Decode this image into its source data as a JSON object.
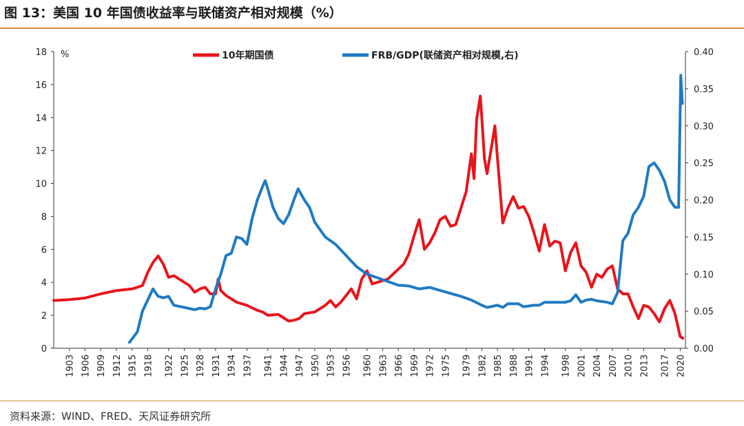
{
  "header": {
    "title": "图 13：美国 10 年国债收益率与联储资产相对规模（%）"
  },
  "footer": {
    "source": "资料来源：WIND、FRED、天风证券研究所"
  },
  "colors": {
    "yield": "#e8141b",
    "frb": "#1f7ac4",
    "rule": "#d98a3a",
    "axis": "#333333"
  },
  "chart_data": {
    "type": "line",
    "title": "",
    "left_axis_unit": "%",
    "ylim_left": [
      0,
      18
    ],
    "yticks_left": [
      0,
      2,
      4,
      6,
      8,
      10,
      12,
      14,
      16,
      18
    ],
    "ylim_right": [
      0,
      0.4
    ],
    "yticks_right": [
      "0.00",
      "0.05",
      "0.10",
      "0.15",
      "0.20",
      "0.25",
      "0.30",
      "0.35",
      "0.40"
    ],
    "xlim": [
      1900,
      2021
    ],
    "xticks": [
      1903,
      1906,
      1909,
      1912,
      1915,
      1918,
      1922,
      1925,
      1928,
      1931,
      1934,
      1937,
      1941,
      1944,
      1947,
      1950,
      1953,
      1956,
      1960,
      1963,
      1966,
      1969,
      1972,
      1975,
      1979,
      1982,
      1985,
      1988,
      1991,
      1994,
      1998,
      2001,
      2004,
      2007,
      2010,
      2013,
      2017,
      2020
    ],
    "legend_position": "top",
    "series": [
      {
        "name": "10年期国债",
        "axis": "left",
        "points": [
          [
            1900,
            2.9
          ],
          [
            1903,
            2.95
          ],
          [
            1906,
            3.05
          ],
          [
            1909,
            3.3
          ],
          [
            1912,
            3.5
          ],
          [
            1915,
            3.6
          ],
          [
            1917,
            3.8
          ],
          [
            1918,
            4.6
          ],
          [
            1919,
            5.2
          ],
          [
            1920,
            5.6
          ],
          [
            1921,
            5.1
          ],
          [
            1922,
            4.3
          ],
          [
            1923,
            4.4
          ],
          [
            1925,
            4.0
          ],
          [
            1926,
            3.8
          ],
          [
            1927,
            3.4
          ],
          [
            1928,
            3.6
          ],
          [
            1929,
            3.7
          ],
          [
            1930,
            3.3
          ],
          [
            1931,
            3.3
          ],
          [
            1931.5,
            4.2
          ],
          [
            1932,
            3.5
          ],
          [
            1933,
            3.2
          ],
          [
            1935,
            2.8
          ],
          [
            1937,
            2.6
          ],
          [
            1939,
            2.3
          ],
          [
            1940,
            2.2
          ],
          [
            1941,
            2.0
          ],
          [
            1943,
            2.05
          ],
          [
            1945,
            1.65
          ],
          [
            1946,
            1.7
          ],
          [
            1947,
            1.8
          ],
          [
            1948,
            2.1
          ],
          [
            1950,
            2.2
          ],
          [
            1952,
            2.6
          ],
          [
            1953,
            2.9
          ],
          [
            1954,
            2.5
          ],
          [
            1955,
            2.8
          ],
          [
            1957,
            3.6
          ],
          [
            1958,
            3.0
          ],
          [
            1959,
            4.2
          ],
          [
            1960,
            4.7
          ],
          [
            1961,
            3.9
          ],
          [
            1962,
            4.0
          ],
          [
            1964,
            4.2
          ],
          [
            1966,
            4.8
          ],
          [
            1967,
            5.1
          ],
          [
            1968,
            5.7
          ],
          [
            1969,
            6.8
          ],
          [
            1970,
            7.8
          ],
          [
            1971,
            6.0
          ],
          [
            1972,
            6.4
          ],
          [
            1973,
            7.0
          ],
          [
            1974,
            7.8
          ],
          [
            1975,
            8.0
          ],
          [
            1976,
            7.4
          ],
          [
            1977,
            7.5
          ],
          [
            1978,
            8.5
          ],
          [
            1979,
            9.5
          ],
          [
            1980,
            11.8
          ],
          [
            1980.5,
            10.3
          ],
          [
            1981,
            13.9
          ],
          [
            1981.7,
            15.3
          ],
          [
            1982,
            14.0
          ],
          [
            1982.5,
            11.5
          ],
          [
            1983,
            10.6
          ],
          [
            1984,
            12.5
          ],
          [
            1984.5,
            13.5
          ],
          [
            1985,
            11.5
          ],
          [
            1986,
            7.6
          ],
          [
            1987,
            8.5
          ],
          [
            1988,
            9.2
          ],
          [
            1989,
            8.5
          ],
          [
            1990,
            8.6
          ],
          [
            1991,
            8.0
          ],
          [
            1992,
            7.0
          ],
          [
            1993,
            5.9
          ],
          [
            1994,
            7.5
          ],
          [
            1995,
            6.2
          ],
          [
            1996,
            6.5
          ],
          [
            1997,
            6.4
          ],
          [
            1998,
            4.7
          ],
          [
            1999,
            5.8
          ],
          [
            2000,
            6.4
          ],
          [
            2001,
            5.0
          ],
          [
            2002,
            4.6
          ],
          [
            2003,
            3.7
          ],
          [
            2004,
            4.5
          ],
          [
            2005,
            4.3
          ],
          [
            2006,
            4.8
          ],
          [
            2007,
            5.0
          ],
          [
            2008,
            3.6
          ],
          [
            2009,
            3.3
          ],
          [
            2010,
            3.3
          ],
          [
            2011,
            2.5
          ],
          [
            2012,
            1.8
          ],
          [
            2013,
            2.6
          ],
          [
            2014,
            2.5
          ],
          [
            2015,
            2.1
          ],
          [
            2016,
            1.6
          ],
          [
            2017,
            2.4
          ],
          [
            2018,
            2.9
          ],
          [
            2019,
            2.1
          ],
          [
            2020,
            0.7
          ],
          [
            2020.5,
            0.6
          ]
        ]
      },
      {
        "name": "FRB/GDP(联储资产相对规模,右)",
        "axis": "right",
        "points": [
          [
            1914.5,
            0.008
          ],
          [
            1916,
            0.022
          ],
          [
            1917,
            0.05
          ],
          [
            1918,
            0.065
          ],
          [
            1919,
            0.08
          ],
          [
            1920,
            0.07
          ],
          [
            1921,
            0.068
          ],
          [
            1922,
            0.07
          ],
          [
            1923,
            0.058
          ],
          [
            1925,
            0.055
          ],
          [
            1927,
            0.052
          ],
          [
            1928,
            0.054
          ],
          [
            1929,
            0.053
          ],
          [
            1930,
            0.056
          ],
          [
            1931,
            0.08
          ],
          [
            1932,
            0.1
          ],
          [
            1933,
            0.125
          ],
          [
            1934,
            0.128
          ],
          [
            1935,
            0.15
          ],
          [
            1936,
            0.148
          ],
          [
            1937,
            0.14
          ],
          [
            1938,
            0.175
          ],
          [
            1939,
            0.2
          ],
          [
            1940,
            0.218
          ],
          [
            1940.5,
            0.226
          ],
          [
            1941,
            0.215
          ],
          [
            1942,
            0.19
          ],
          [
            1943,
            0.175
          ],
          [
            1944,
            0.168
          ],
          [
            1945,
            0.18
          ],
          [
            1946,
            0.2
          ],
          [
            1946.8,
            0.215
          ],
          [
            1948,
            0.2
          ],
          [
            1949,
            0.19
          ],
          [
            1950,
            0.17
          ],
          [
            1952,
            0.15
          ],
          [
            1954,
            0.14
          ],
          [
            1956,
            0.125
          ],
          [
            1958,
            0.11
          ],
          [
            1960,
            0.1
          ],
          [
            1962,
            0.095
          ],
          [
            1964,
            0.09
          ],
          [
            1966,
            0.085
          ],
          [
            1968,
            0.084
          ],
          [
            1970,
            0.08
          ],
          [
            1972,
            0.082
          ],
          [
            1974,
            0.078
          ],
          [
            1976,
            0.074
          ],
          [
            1978,
            0.07
          ],
          [
            1980,
            0.065
          ],
          [
            1982,
            0.058
          ],
          [
            1983,
            0.055
          ],
          [
            1985,
            0.058
          ],
          [
            1986,
            0.055
          ],
          [
            1987,
            0.06
          ],
          [
            1989,
            0.06
          ],
          [
            1990,
            0.056
          ],
          [
            1992,
            0.058
          ],
          [
            1993,
            0.058
          ],
          [
            1994,
            0.062
          ],
          [
            1996,
            0.062
          ],
          [
            1998,
            0.062
          ],
          [
            1999,
            0.064
          ],
          [
            2000,
            0.072
          ],
          [
            2001,
            0.062
          ],
          [
            2002,
            0.065
          ],
          [
            2003,
            0.066
          ],
          [
            2004,
            0.064
          ],
          [
            2006,
            0.062
          ],
          [
            2007,
            0.06
          ],
          [
            2008,
            0.075
          ],
          [
            2009,
            0.145
          ],
          [
            2010,
            0.155
          ],
          [
            2011,
            0.18
          ],
          [
            2012,
            0.19
          ],
          [
            2013,
            0.205
          ],
          [
            2014,
            0.245
          ],
          [
            2015,
            0.25
          ],
          [
            2016,
            0.24
          ],
          [
            2017,
            0.225
          ],
          [
            2018,
            0.2
          ],
          [
            2019,
            0.19
          ],
          [
            2019.7,
            0.19
          ],
          [
            2020.1,
            0.368
          ],
          [
            2020.4,
            0.33
          ]
        ]
      }
    ]
  }
}
